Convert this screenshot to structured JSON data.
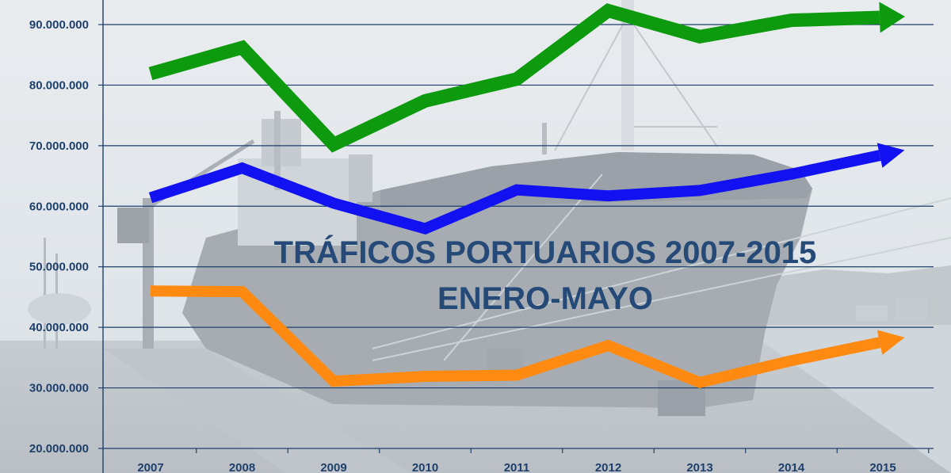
{
  "chart_data": {
    "type": "line",
    "title": [
      "TRÁFICOS PORTUARIOS 2007-2015",
      "ENERO-MAYO"
    ],
    "xlabel": "",
    "ylabel": "",
    "categories": [
      "2007",
      "2008",
      "2009",
      "2010",
      "2011",
      "2012",
      "2013",
      "2014",
      "2015"
    ],
    "y_ticks": [
      "20.000.000",
      "30.000.000",
      "40.000.000",
      "50.000.000",
      "60.000.000",
      "70.000.000",
      "80.000.000",
      "90.000.000"
    ],
    "ylim": [
      20000000,
      92000000
    ],
    "grid": true,
    "legend": "none",
    "series": [
      {
        "color": "#0e9a0e",
        "values": [
          81900000,
          86200000,
          70200000,
          77400000,
          81000000,
          92300000,
          88000000,
          90700000,
          91200000
        ]
      },
      {
        "color": "#1111f2",
        "values": [
          61400000,
          66300000,
          60500000,
          56300000,
          62700000,
          61700000,
          62600000,
          65300000,
          68500000
        ]
      },
      {
        "color": "#ff8a12",
        "values": [
          46000000,
          45900000,
          31100000,
          31900000,
          32100000,
          37000000,
          30900000,
          34500000,
          37600000
        ]
      }
    ]
  }
}
